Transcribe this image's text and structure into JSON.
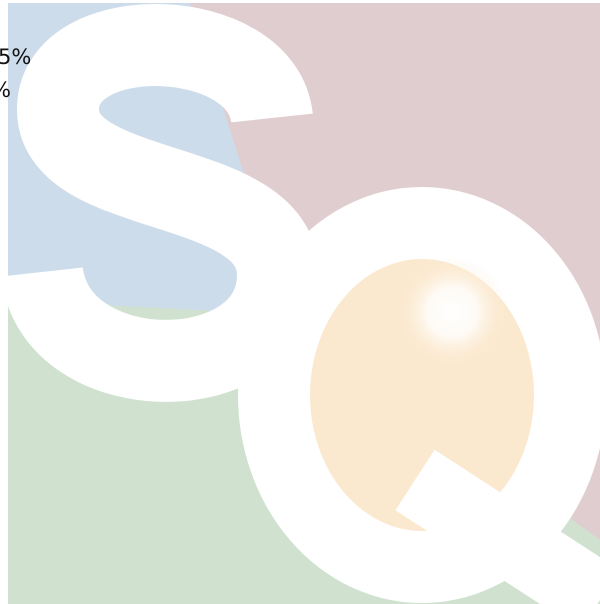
{
  "texts": [
    "5%",
    "%"
  ]
}
